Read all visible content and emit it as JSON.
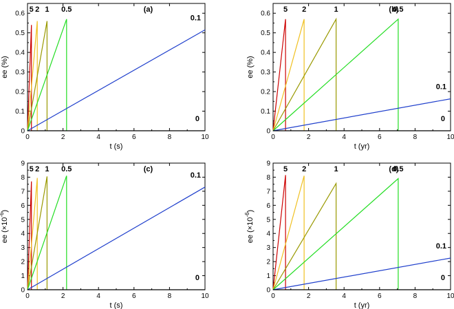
{
  "chart_data": [
    {
      "type": "line",
      "panel_label": "(a)",
      "xlabel": "t (s)",
      "ylabel": "ee (%)",
      "xlim": [
        0,
        10
      ],
      "ylim": [
        0,
        0.65
      ],
      "xticks": [
        0,
        2,
        4,
        6,
        8,
        10
      ],
      "yticks": [
        0,
        0.1,
        0.2,
        0.3,
        0.4,
        0.5,
        0.6
      ],
      "ytick_labels": [
        "0",
        "0.1",
        "0.2",
        "0.3",
        "0.4",
        "0.5",
        "0.6"
      ],
      "series": [
        {
          "name": "5",
          "color": "#cc0000",
          "x": [
            0,
            0.22,
            0.22
          ],
          "y": [
            0,
            0.54,
            0
          ]
        },
        {
          "name": "2",
          "color": "#f0c020",
          "x": [
            0,
            0.55,
            0.55
          ],
          "y": [
            0,
            0.56,
            0
          ]
        },
        {
          "name": "1",
          "color": "#999900",
          "x": [
            0,
            1.1,
            1.1
          ],
          "y": [
            0,
            0.56,
            0
          ]
        },
        {
          "name": "0.5",
          "color": "#22dd22",
          "x": [
            0,
            2.2,
            2.2
          ],
          "y": [
            0,
            0.57,
            0
          ]
        },
        {
          "name": "0.1",
          "color": "#1f3fcc",
          "x": [
            0,
            10
          ],
          "y": [
            0,
            0.515
          ]
        },
        {
          "name": "0",
          "color": "#000000",
          "x": [
            0,
            10
          ],
          "y": [
            0,
            0
          ]
        }
      ]
    },
    {
      "type": "line",
      "panel_label": "(b)",
      "xlabel": "t (yr)",
      "ylabel": "ee (%)",
      "xlim": [
        0,
        10
      ],
      "ylim": [
        0,
        0.65
      ],
      "xticks": [
        0,
        2,
        4,
        6,
        8,
        10
      ],
      "yticks": [
        0,
        0.1,
        0.2,
        0.3,
        0.4,
        0.5,
        0.6
      ],
      "ytick_labels": [
        "0",
        "0.1",
        "0.2",
        "0.3",
        "0.4",
        "0.5",
        "0.6"
      ],
      "series": [
        {
          "name": "5",
          "color": "#cc0000",
          "x": [
            0,
            0.7,
            0.7
          ],
          "y": [
            0,
            0.57,
            0
          ]
        },
        {
          "name": "2",
          "color": "#f0c020",
          "x": [
            0,
            1.75,
            1.75
          ],
          "y": [
            0,
            0.57,
            0
          ]
        },
        {
          "name": "1",
          "color": "#999900",
          "x": [
            0,
            3.55,
            3.55
          ],
          "y": [
            0,
            0.57,
            0
          ]
        },
        {
          "name": "0.5",
          "color": "#22dd22",
          "x": [
            0,
            7.05,
            7.05
          ],
          "y": [
            0,
            0.57,
            0
          ]
        },
        {
          "name": "0.1",
          "color": "#1f3fcc",
          "x": [
            0,
            10
          ],
          "y": [
            0,
            0.163
          ]
        },
        {
          "name": "0",
          "color": "#000000",
          "x": [
            0,
            10
          ],
          "y": [
            0,
            0
          ]
        }
      ]
    },
    {
      "type": "line",
      "panel_label": "(c)",
      "xlabel": "t (s)",
      "ylabel": "ee (×10",
      "ylabel_sup": "-6",
      "ylabel_end": ")",
      "xlim": [
        0,
        10
      ],
      "ylim": [
        0,
        9
      ],
      "xticks": [
        0,
        2,
        4,
        6,
        8,
        10
      ],
      "yticks": [
        0,
        1,
        2,
        3,
        4,
        5,
        6,
        7,
        8,
        9
      ],
      "ytick_labels": [
        "0",
        "1",
        "2",
        "3",
        "4",
        "5",
        "6",
        "7",
        "8",
        "9"
      ],
      "series": [
        {
          "name": "5",
          "color": "#cc0000",
          "x": [
            0,
            0.22,
            0.22
          ],
          "y": [
            0,
            7.7,
            0
          ]
        },
        {
          "name": "2",
          "color": "#f0c020",
          "x": [
            0,
            0.55,
            0.55
          ],
          "y": [
            0,
            7.95,
            0
          ]
        },
        {
          "name": "1",
          "color": "#999900",
          "x": [
            0,
            1.1,
            1.1
          ],
          "y": [
            0,
            8.05,
            0
          ]
        },
        {
          "name": "0.5",
          "color": "#22dd22",
          "x": [
            0,
            2.2,
            2.2
          ],
          "y": [
            0,
            8.1,
            0
          ]
        },
        {
          "name": "0.1",
          "color": "#1f3fcc",
          "x": [
            0,
            10
          ],
          "y": [
            0,
            7.3
          ]
        },
        {
          "name": "0",
          "color": "#000000",
          "x": [
            0,
            10
          ],
          "y": [
            0,
            0
          ]
        }
      ]
    },
    {
      "type": "line",
      "panel_label": "(d)",
      "xlabel": "t (yr)",
      "ylabel": "ee (×10",
      "ylabel_sup": "-6",
      "ylabel_end": ")",
      "xlim": [
        0,
        10
      ],
      "ylim": [
        0,
        9
      ],
      "xticks": [
        0,
        2,
        4,
        6,
        8,
        10
      ],
      "yticks": [
        0,
        1,
        2,
        3,
        4,
        5,
        6,
        7,
        8,
        9
      ],
      "ytick_labels": [
        "0",
        "1",
        "2",
        "3",
        "4",
        "5",
        "6",
        "7",
        "8",
        "9"
      ],
      "series": [
        {
          "name": "5",
          "color": "#cc0000",
          "x": [
            0,
            0.7,
            0.7
          ],
          "y": [
            0,
            8.15,
            0
          ]
        },
        {
          "name": "2",
          "color": "#f0c020",
          "x": [
            0,
            1.75,
            1.75
          ],
          "y": [
            0,
            8.1,
            0
          ]
        },
        {
          "name": "1",
          "color": "#999900",
          "x": [
            0,
            3.55,
            3.55
          ],
          "y": [
            0,
            7.55,
            0
          ]
        },
        {
          "name": "0.5",
          "color": "#22dd22",
          "x": [
            0,
            7.05,
            7.05
          ],
          "y": [
            0,
            7.9,
            0
          ]
        },
        {
          "name": "0.1",
          "color": "#1f3fcc",
          "x": [
            0,
            10
          ],
          "y": [
            0,
            2.25
          ]
        },
        {
          "name": "0",
          "color": "#000000",
          "x": [
            0,
            10
          ],
          "y": [
            0,
            0
          ]
        }
      ]
    }
  ]
}
